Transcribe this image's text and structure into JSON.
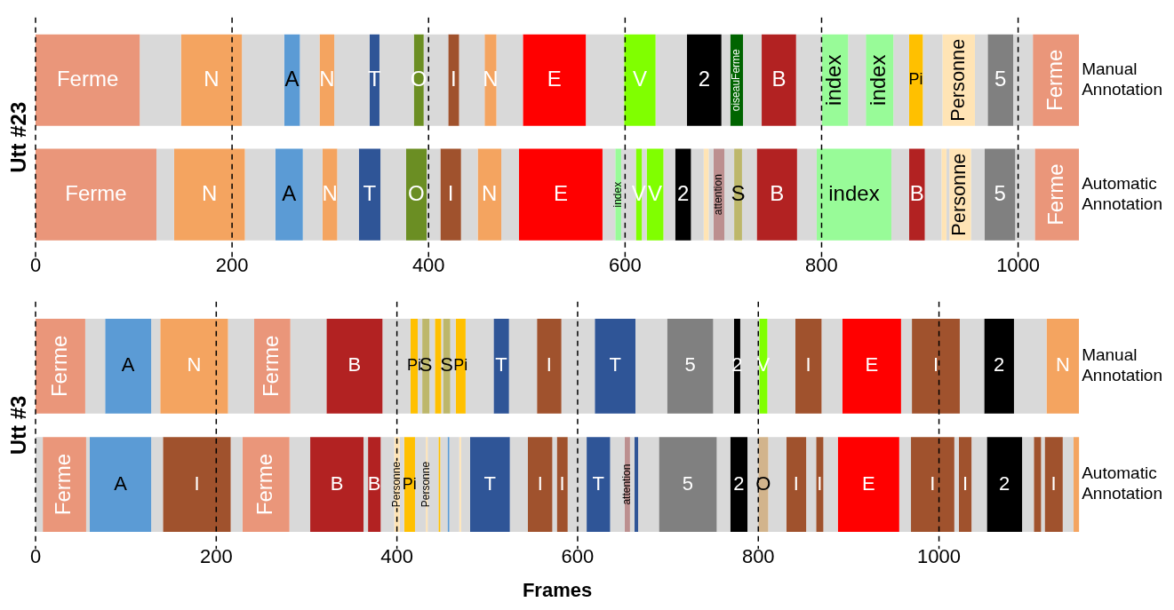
{
  "chart_data": [
    {
      "type": "bar",
      "orientation": "horizontal",
      "stacked": true,
      "ylabel": "Utt #23",
      "categories": [
        "Manual Annotation",
        "Automatic Annotation"
      ],
      "xlim": [
        0,
        1062
      ],
      "xticks": [
        0,
        200,
        400,
        600,
        800,
        1000
      ],
      "grid": "x",
      "series": [
        {
          "name": "Ferme",
          "color": "#ea967a",
          "values": [
            106,
            null
          ]
        },
        {
          "color": "#d9d9d9",
          "values": [
            42,
            null
          ]
        },
        {
          "name": "N",
          "color": "#f4a460",
          "values": [
            62,
            null
          ]
        },
        {
          "color": "#d9d9d9",
          "values": [
            43,
            null
          ]
        },
        {
          "name": "A",
          "color": "#5b9bd5",
          "values": [
            16,
            null
          ]
        },
        {
          "color": "#d9d9d9",
          "values": [
            20,
            null
          ]
        },
        {
          "name": "N",
          "color": "#f4a460",
          "values": [
            15,
            null
          ]
        },
        {
          "color": "#d9d9d9",
          "values": [
            36,
            null
          ]
        },
        {
          "name": "T",
          "color": "#2f5597",
          "values": [
            10,
            null
          ]
        },
        {
          "color": "#d9d9d9",
          "values": [
            35,
            null
          ]
        },
        {
          "name": "O",
          "color": "#6b8e23",
          "values": [
            10,
            null
          ]
        },
        {
          "color": "#d9d9d9",
          "values": [
            25,
            null
          ]
        },
        {
          "name": "I",
          "color": "#a0522d",
          "values": [
            11,
            null
          ]
        },
        {
          "color": "#d9d9d9",
          "values": [
            26,
            null
          ]
        },
        {
          "name": "N",
          "color": "#f4a460",
          "values": [
            12,
            null
          ]
        },
        {
          "color": "#d9d9d9",
          "values": [
            27,
            null
          ]
        },
        {
          "name": "E",
          "color": "#ff0000",
          "values": [
            64,
            null
          ]
        },
        {
          "color": "#d9d9d9",
          "values": [
            39,
            null
          ]
        },
        {
          "name": "V",
          "color": "#80ff00",
          "values": [
            32,
            null
          ]
        },
        {
          "color": "#d9d9d9",
          "values": [
            32,
            null
          ]
        },
        {
          "name": "2",
          "color": "#000000",
          "values": [
            35,
            null
          ]
        },
        {
          "color": "#d9d9d9",
          "values": [
            9,
            null
          ]
        },
        {
          "name": "oiseauFerme",
          "color": "#006400",
          "values": [
            13,
            null
          ]
        },
        {
          "color": "#d9d9d9",
          "values": [
            19,
            null
          ]
        },
        {
          "name": "B",
          "color": "#b22222",
          "values": [
            35,
            null
          ]
        },
        {
          "color": "#d9d9d9",
          "values": [
            26,
            null
          ]
        },
        {
          "name": "index",
          "color": "#98fb98",
          "values": [
            27,
            null
          ]
        },
        {
          "color": "#d9d9d9",
          "values": [
            18,
            null
          ]
        },
        {
          "name": "index",
          "color": "#98fb98",
          "values": [
            28,
            null
          ]
        },
        {
          "color": "#d9d9d9",
          "values": [
            16,
            null
          ]
        },
        {
          "name": "Pi",
          "color": "#ffc000",
          "values": [
            14,
            null
          ]
        },
        {
          "color": "#d9d9d9",
          "values": [
            20,
            null
          ]
        },
        {
          "name": "Personne",
          "color": "#ffe4b5",
          "values": [
            33,
            null
          ]
        },
        {
          "color": "#d9d9d9",
          "values": [
            13,
            null
          ]
        },
        {
          "name": "5",
          "color": "#808080",
          "values": [
            26,
            null
          ]
        },
        {
          "color": "#d9d9d9",
          "values": [
            20,
            null
          ]
        },
        {
          "name": "Ferme",
          "color": "#ea967a",
          "values": [
            47,
            null
          ]
        },
        {
          "name": "Ferme",
          "color": "#ea967a",
          "values": [
            null,
            123
          ]
        },
        {
          "color": "#d9d9d9",
          "values": [
            null,
            18
          ]
        },
        {
          "name": "N",
          "color": "#f4a460",
          "values": [
            null,
            72
          ]
        },
        {
          "color": "#d9d9d9",
          "values": [
            null,
            31
          ]
        },
        {
          "name": "A",
          "color": "#5b9bd5",
          "values": [
            null,
            28
          ]
        },
        {
          "color": "#d9d9d9",
          "values": [
            null,
            20
          ]
        },
        {
          "name": "N",
          "color": "#f4a460",
          "values": [
            null,
            15
          ]
        },
        {
          "color": "#d9d9d9",
          "values": [
            null,
            22
          ]
        },
        {
          "name": "T",
          "color": "#2f5597",
          "values": [
            null,
            22
          ]
        },
        {
          "color": "#d9d9d9",
          "values": [
            null,
            26
          ]
        },
        {
          "name": "O",
          "color": "#6b8e23",
          "values": [
            null,
            21
          ]
        },
        {
          "color": "#d9d9d9",
          "values": [
            null,
            14
          ]
        },
        {
          "name": "I",
          "color": "#a0522d",
          "values": [
            null,
            21
          ]
        },
        {
          "color": "#d9d9d9",
          "values": [
            null,
            17
          ]
        },
        {
          "name": "N",
          "color": "#f4a460",
          "values": [
            null,
            24
          ]
        },
        {
          "color": "#d9d9d9",
          "values": [
            null,
            18
          ]
        },
        {
          "name": "E",
          "color": "#ff0000",
          "values": [
            null,
            85
          ]
        },
        {
          "color": "#d9d9d9",
          "values": [
            null,
            13
          ]
        },
        {
          "name": "index",
          "color": "#98fb98",
          "values": [
            null,
            6
          ]
        },
        {
          "color": "#d9d9d9",
          "values": [
            null,
            15
          ]
        },
        {
          "name": "V",
          "color": "#80ff00",
          "values": [
            null,
            6
          ]
        },
        {
          "color": "#d9d9d9",
          "values": [
            null,
            5
          ]
        },
        {
          "name": "V",
          "color": "#80ff00",
          "values": [
            null,
            17
          ]
        },
        {
          "color": "#d9d9d9",
          "values": [
            null,
            12
          ]
        },
        {
          "name": "2",
          "color": "#000000",
          "values": [
            null,
            16
          ]
        },
        {
          "color": "#d9d9d9",
          "values": [
            null,
            13
          ]
        },
        {
          "color": "#ffe4b5",
          "values": [
            null,
            5
          ]
        },
        {
          "color": "#d9d9d9",
          "values": [
            null,
            5
          ]
        },
        {
          "name": "attention",
          "color": "#bc8f8f",
          "values": [
            null,
            11
          ]
        },
        {
          "color": "#d9d9d9",
          "values": [
            null,
            10
          ]
        },
        {
          "name": "S",
          "color": "#bdb76b",
          "values": [
            null,
            8
          ]
        },
        {
          "color": "#d9d9d9",
          "values": [
            null,
            15
          ]
        },
        {
          "name": "B",
          "color": "#b22222",
          "values": [
            null,
            41
          ]
        },
        {
          "color": "#d9d9d9",
          "values": [
            null,
            20
          ]
        },
        {
          "name": "index",
          "color": "#98fb98",
          "values": [
            null,
            76
          ]
        },
        {
          "color": "#d9d9d9",
          "values": [
            null,
            18
          ]
        },
        {
          "name": "B",
          "color": "#b22222",
          "values": [
            null,
            16
          ]
        },
        {
          "color": "#d9d9d9",
          "values": [
            null,
            17
          ]
        },
        {
          "color": "#ffe4b5",
          "values": [
            null,
            5
          ]
        },
        {
          "color": "#d9d9d9",
          "values": [
            null,
            3
          ]
        },
        {
          "name": "Personne",
          "color": "#ffe4b5",
          "values": [
            null,
            22
          ]
        },
        {
          "color": "#d9d9d9",
          "values": [
            null,
            14
          ]
        },
        {
          "name": "5",
          "color": "#808080",
          "values": [
            null,
            31
          ]
        },
        {
          "color": "#d9d9d9",
          "values": [
            null,
            20
          ]
        },
        {
          "name": "Ferme",
          "color": "#ea967a",
          "values": [
            null,
            45
          ]
        }
      ]
    },
    {
      "type": "bar",
      "orientation": "horizontal",
      "stacked": true,
      "ylabel": "Utt #3",
      "xlabel": "Frames",
      "categories": [
        "Manual Annotation",
        "Automatic Annotation"
      ],
      "xlim": [
        0,
        1155
      ],
      "xticks": [
        0,
        200,
        400,
        600,
        800,
        1000
      ],
      "grid": "x",
      "series": [
        {
          "name": "Ferme",
          "color": "#ea967a",
          "values": [
            55,
            null
          ]
        },
        {
          "color": "#d9d9d9",
          "values": [
            22,
            null
          ]
        },
        {
          "name": "A",
          "color": "#5b9bd5",
          "values": [
            51,
            null
          ]
        },
        {
          "color": "#d9d9d9",
          "values": [
            10,
            null
          ]
        },
        {
          "name": "N",
          "color": "#f4a460",
          "values": [
            75,
            null
          ]
        },
        {
          "color": "#d9d9d9",
          "values": [
            29,
            null
          ]
        },
        {
          "name": "Ferme",
          "color": "#ea967a",
          "values": [
            40,
            null
          ]
        },
        {
          "color": "#d9d9d9",
          "values": [
            40,
            null
          ]
        },
        {
          "name": "B",
          "color": "#b22222",
          "values": [
            62,
            null
          ]
        },
        {
          "color": "#d9d9d9",
          "values": [
            31,
            null
          ]
        },
        {
          "name": "Pi",
          "color": "#ffc000",
          "values": [
            8,
            null
          ]
        },
        {
          "color": "#d9d9d9",
          "values": [
            5,
            null
          ]
        },
        {
          "name": "S",
          "color": "#bdb76b",
          "values": [
            8,
            null
          ]
        },
        {
          "color": "#d9d9d9",
          "values": [
            6,
            null
          ]
        },
        {
          "color": "#ffc000",
          "values": [
            7,
            null
          ]
        },
        {
          "color": "#d9d9d9",
          "values": [
            2,
            null
          ]
        },
        {
          "name": "S",
          "color": "#bdb76b",
          "values": [
            8,
            null
          ]
        },
        {
          "color": "#d9d9d9",
          "values": [
            6,
            null
          ]
        },
        {
          "name": "Pi",
          "color": "#ffc000",
          "values": [
            11,
            null
          ]
        },
        {
          "color": "#d9d9d9",
          "values": [
            31,
            null
          ]
        },
        {
          "name": "T",
          "color": "#2f5597",
          "values": [
            17,
            null
          ]
        },
        {
          "color": "#d9d9d9",
          "values": [
            31,
            null
          ]
        },
        {
          "name": "I",
          "color": "#a0522d",
          "values": [
            27,
            null
          ]
        },
        {
          "color": "#d9d9d9",
          "values": [
            37,
            null
          ]
        },
        {
          "name": "T",
          "color": "#2f5597",
          "values": [
            45,
            null
          ]
        },
        {
          "color": "#d9d9d9",
          "values": [
            35,
            null
          ]
        },
        {
          "name": "5",
          "color": "#808080",
          "values": [
            51,
            null
          ]
        },
        {
          "color": "#d9d9d9",
          "values": [
            23,
            null
          ]
        },
        {
          "name": "2",
          "color": "#000000",
          "values": [
            7,
            null
          ]
        },
        {
          "color": "#d9d9d9",
          "values": [
            21,
            null
          ]
        },
        {
          "name": "V",
          "color": "#80ff00",
          "values": [
            9,
            null
          ]
        },
        {
          "color": "#d9d9d9",
          "values": [
            31,
            null
          ]
        },
        {
          "name": "I",
          "color": "#a0522d",
          "values": [
            29,
            null
          ]
        },
        {
          "color": "#d9d9d9",
          "values": [
            23,
            null
          ]
        },
        {
          "name": "E",
          "color": "#ff0000",
          "values": [
            65,
            null
          ]
        },
        {
          "color": "#d9d9d9",
          "values": [
            12,
            null
          ]
        },
        {
          "name": "I",
          "color": "#a0522d",
          "values": [
            53,
            null
          ]
        },
        {
          "color": "#d9d9d9",
          "values": [
            27,
            null
          ]
        },
        {
          "name": "2",
          "color": "#000000",
          "values": [
            33,
            null
          ]
        },
        {
          "color": "#d9d9d9",
          "values": [
            36,
            null
          ]
        },
        {
          "name": "N",
          "color": "#f4a460",
          "values": [
            36,
            null
          ]
        },
        {
          "color": "#d9d9d9",
          "values": [
            null,
            8
          ]
        },
        {
          "name": "Ferme",
          "color": "#ea967a",
          "values": [
            null,
            48
          ]
        },
        {
          "color": "#d9d9d9",
          "values": [
            null,
            4
          ]
        },
        {
          "name": "A",
          "color": "#5b9bd5",
          "values": [
            null,
            68
          ]
        },
        {
          "color": "#d9d9d9",
          "values": [
            null,
            13
          ]
        },
        {
          "name": "I",
          "color": "#a0522d",
          "values": [
            null,
            75
          ]
        },
        {
          "color": "#d9d9d9",
          "values": [
            null,
            13
          ]
        },
        {
          "name": "Ferme",
          "color": "#ea967a",
          "values": [
            null,
            52
          ]
        },
        {
          "color": "#d9d9d9",
          "values": [
            null,
            23
          ]
        },
        {
          "name": "B",
          "color": "#b22222",
          "values": [
            null,
            59
          ]
        },
        {
          "color": "#d9d9d9",
          "values": [
            null,
            5
          ]
        },
        {
          "name": "B",
          "color": "#b22222",
          "values": [
            null,
            14
          ]
        },
        {
          "color": "#d9d9d9",
          "values": [
            null,
            15
          ]
        },
        {
          "name": "Personne",
          "color": "#ffe4b5",
          "values": [
            null,
            6
          ]
        },
        {
          "color": "#d9d9d9",
          "values": [
            null,
            5
          ]
        },
        {
          "name": "Pi",
          "color": "#ffc000",
          "values": [
            null,
            12
          ]
        },
        {
          "color": "#d9d9d9",
          "values": [
            null,
            12
          ]
        },
        {
          "name": "Personne",
          "color": "#ffe4b5",
          "values": [
            null,
            1
          ]
        },
        {
          "color": "#d9d9d9",
          "values": [
            null,
            12
          ]
        },
        {
          "color": "#ffc000",
          "values": [
            null,
            2
          ]
        },
        {
          "color": "#d9d9d9",
          "values": [
            null,
            8
          ]
        },
        {
          "color": "#5b9bd5",
          "values": [
            null,
            2
          ]
        },
        {
          "color": "#d9d9d9",
          "values": [
            null,
            11
          ]
        },
        {
          "color": "#ffe4b5",
          "values": [
            null,
            2
          ]
        },
        {
          "color": "#d9d9d9",
          "values": [
            null,
            10
          ]
        },
        {
          "name": "T",
          "color": "#2f5597",
          "values": [
            null,
            44
          ]
        },
        {
          "color": "#d9d9d9",
          "values": [
            null,
            20
          ]
        },
        {
          "name": "I",
          "color": "#a0522d",
          "values": [
            null,
            27
          ]
        },
        {
          "color": "#d9d9d9",
          "values": [
            null,
            5
          ]
        },
        {
          "name": "I",
          "color": "#a0522d",
          "values": [
            null,
            12
          ]
        },
        {
          "color": "#d9d9d9",
          "values": [
            null,
            21
          ]
        },
        {
          "name": "T",
          "color": "#2f5597",
          "values": [
            null,
            26
          ]
        },
        {
          "color": "#d9d9d9",
          "values": [
            null,
            16
          ]
        },
        {
          "name": "attention",
          "color": "#bc8f8f",
          "values": [
            null,
            6
          ]
        },
        {
          "color": "#d9d9d9",
          "values": [
            null,
            5
          ]
        },
        {
          "color": "#2f5597",
          "values": [
            null,
            4
          ]
        },
        {
          "color": "#d9d9d9",
          "values": [
            null,
            23
          ]
        },
        {
          "name": "5",
          "color": "#808080",
          "values": [
            null,
            64
          ]
        },
        {
          "color": "#d9d9d9",
          "values": [
            null,
            15
          ]
        },
        {
          "name": "2",
          "color": "#000000",
          "values": [
            null,
            19
          ]
        },
        {
          "color": "#d9d9d9",
          "values": [
            null,
            12
          ]
        },
        {
          "name": "O",
          "color": "#d2b48c",
          "values": [
            null,
            11
          ]
        },
        {
          "color": "#d9d9d9",
          "values": [
            null,
            20
          ]
        },
        {
          "name": "I",
          "color": "#a0522d",
          "values": [
            null,
            22
          ]
        },
        {
          "color": "#d9d9d9",
          "values": [
            null,
            11
          ]
        },
        {
          "name": "I",
          "color": "#a0522d",
          "values": [
            null,
            8
          ]
        },
        {
          "color": "#d9d9d9",
          "values": [
            null,
            16
          ]
        },
        {
          "name": "E",
          "color": "#ff0000",
          "values": [
            null,
            68
          ]
        },
        {
          "color": "#d9d9d9",
          "values": [
            null,
            13
          ]
        },
        {
          "name": "I",
          "color": "#a0522d",
          "values": [
            null,
            48
          ]
        },
        {
          "color": "#d9d9d9",
          "values": [
            null,
            5
          ]
        },
        {
          "name": "I",
          "color": "#a0522d",
          "values": [
            null,
            14
          ]
        },
        {
          "color": "#d9d9d9",
          "values": [
            null,
            17
          ]
        },
        {
          "name": "2",
          "color": "#000000",
          "values": [
            null,
            39
          ]
        },
        {
          "color": "#d9d9d9",
          "values": [
            null,
            13
          ]
        },
        {
          "color": "#a0522d",
          "values": [
            null,
            8
          ]
        },
        {
          "color": "#d9d9d9",
          "values": [
            null,
            4
          ]
        },
        {
          "name": "I",
          "color": "#a0522d",
          "values": [
            null,
            20
          ]
        },
        {
          "color": "#d9d9d9",
          "values": [
            null,
            12
          ]
        },
        {
          "color": "#f4a460",
          "values": [
            null,
            7
          ]
        }
      ]
    }
  ]
}
